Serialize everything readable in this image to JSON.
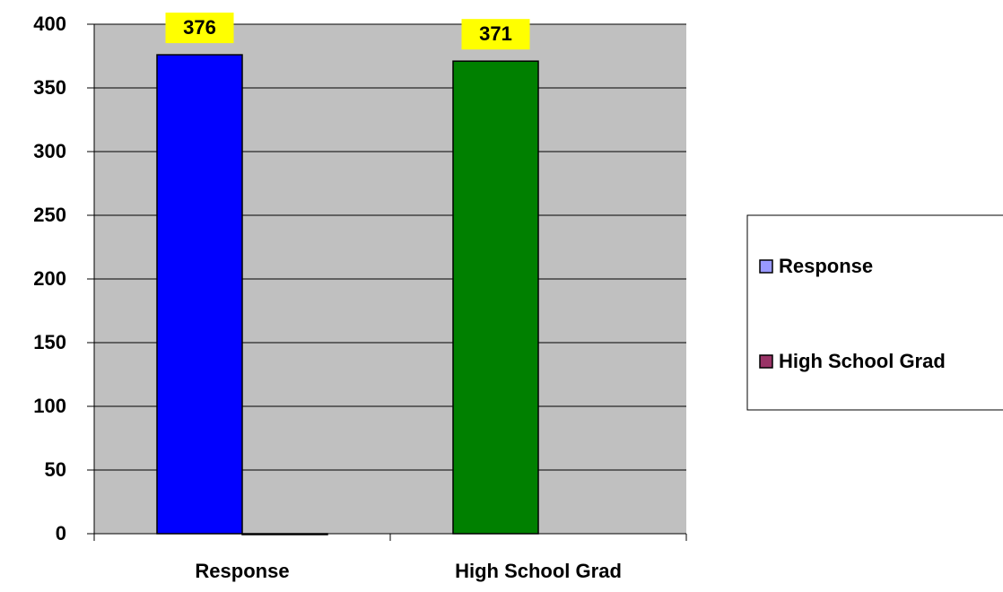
{
  "chart_data": {
    "type": "bar",
    "categories": [
      "Response",
      "High School Grad"
    ],
    "series": [
      {
        "name": "Response",
        "color": "#9999ff",
        "colors": [
          "#0000ff",
          "#008000"
        ],
        "values": [
          376,
          371
        ]
      },
      {
        "name": "High School Grad",
        "color": "#993366",
        "values": [
          0,
          null
        ]
      }
    ],
    "ylim": [
      0,
      400
    ],
    "yticks": [
      0,
      50,
      100,
      150,
      200,
      250,
      300,
      350,
      400
    ],
    "grid": true,
    "legend": "right",
    "plot_background": "#c0c0c0",
    "label_background": "#ffff00"
  }
}
